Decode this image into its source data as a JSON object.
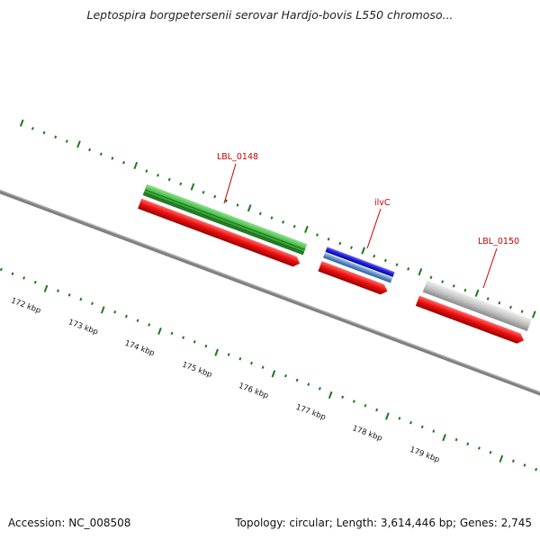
{
  "title": "Leptospira borgpetersenii serovar Hardjo-bovis L550 chromoso...",
  "footer": {
    "accession": "Accession: NC_008508",
    "topology": "Topology: circular; Length: 3,614,446 bp; Genes: 2,745"
  },
  "colors": {
    "label": "#cc0000",
    "backbone": "#808080",
    "tick": "#1a7a1a",
    "feature_red": "#ee1111",
    "gene_green": "#3cb83c",
    "gene_blue": "#1a1add",
    "gene_steel": "#5a8cc8",
    "gene_gray": "#bdbdbd"
  },
  "kbp_labels": [
    "172 kbp",
    "173 kbp",
    "174 kbp",
    "175 kbp",
    "176 kbp",
    "177 kbp",
    "178 kbp",
    "179 kbp"
  ],
  "genes": [
    {
      "label": "LBL_0148"
    },
    {
      "label": "ilvC"
    },
    {
      "label": "LBL_0150"
    }
  ]
}
